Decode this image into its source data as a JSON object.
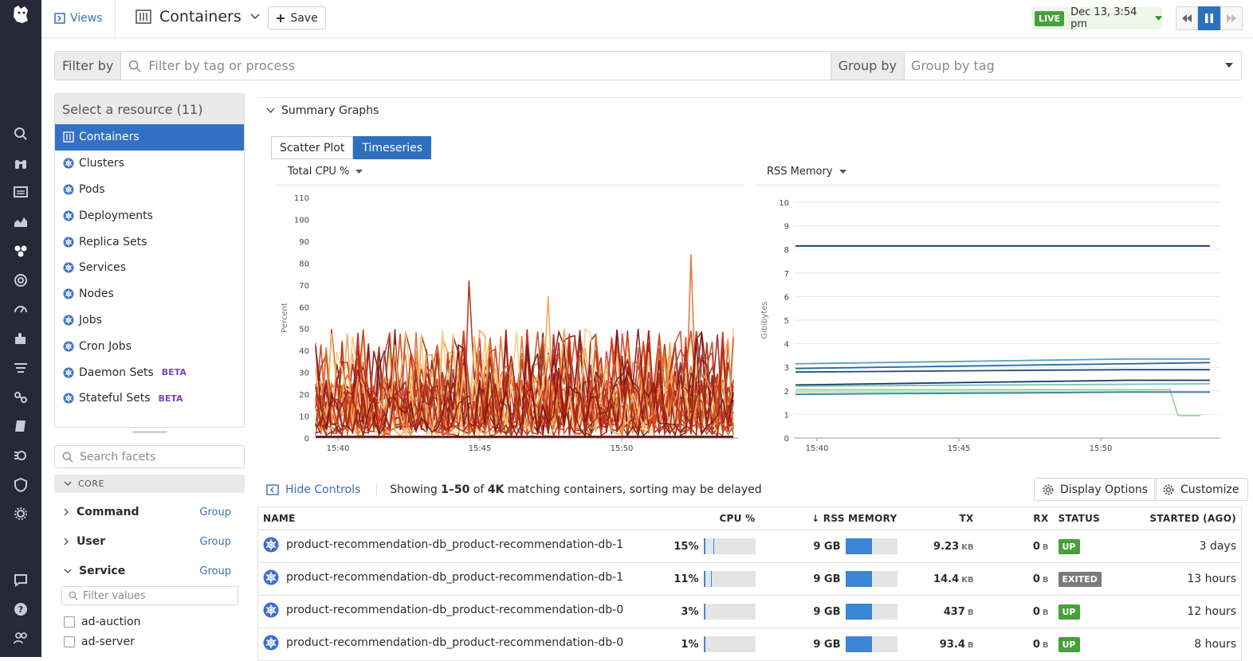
{
  "topbar": {
    "views_label": "Views",
    "page_title": "Containers",
    "save_label": "Save",
    "live_badge": "LIVE",
    "timestamp": "Dec 13, 3:54 pm"
  },
  "filterbar": {
    "filter_label": "Filter by",
    "filter_placeholder": "Filter by tag or process",
    "group_label": "Group by",
    "group_placeholder": "Group by tag"
  },
  "resources": {
    "header": "Select a resource (11)",
    "items": [
      {
        "label": "Containers",
        "beta": ""
      },
      {
        "label": "Clusters",
        "beta": ""
      },
      {
        "label": "Pods",
        "beta": ""
      },
      {
        "label": "Deployments",
        "beta": ""
      },
      {
        "label": "Replica Sets",
        "beta": ""
      },
      {
        "label": "Services",
        "beta": ""
      },
      {
        "label": "Nodes",
        "beta": ""
      },
      {
        "label": "Jobs",
        "beta": ""
      },
      {
        "label": "Cron Jobs",
        "beta": ""
      },
      {
        "label": "Daemon Sets",
        "beta": "BETA"
      },
      {
        "label": "Stateful Sets",
        "beta": "BETA"
      }
    ]
  },
  "facets": {
    "search_placeholder": "Search facets",
    "core_label": "CORE",
    "group_link": "Group",
    "items": [
      "Command",
      "User",
      "Service"
    ],
    "filter_values_placeholder": "Filter values",
    "values": [
      "ad-auction",
      "ad-server"
    ]
  },
  "summary": {
    "title": "Summary Graphs",
    "tabs": [
      "Scatter Plot",
      "Timeseries"
    ],
    "cpu_select": "Total CPU %",
    "mem_select": "RSS Memory"
  },
  "chart_data": [
    {
      "type": "line",
      "ylabel": "Percent",
      "ylim": [
        0,
        110
      ],
      "yticks": [
        "0",
        "10",
        "20",
        "30",
        "40",
        "50",
        "60",
        "70",
        "80",
        "90",
        "100",
        "110"
      ],
      "xticks": [
        "15:40",
        "15:45",
        "15:50"
      ],
      "series_colors": [
        "#7a1212",
        "#a52a14",
        "#c8431c",
        "#e06a2c",
        "#f0a04a",
        "#f7c978",
        "#d33a1f",
        "#9e1b1b"
      ],
      "peak": 84,
      "typical_max": 45
    },
    {
      "type": "line",
      "ylabel": "Gibibytes",
      "ylim": [
        0,
        10
      ],
      "yticks": [
        "0",
        "1",
        "2",
        "3",
        "4",
        "5",
        "6",
        "7",
        "8",
        "9",
        "10"
      ],
      "xticks": [
        "15:40",
        "15:45",
        "15:50"
      ],
      "series": [
        {
          "color": "#12345e",
          "values": [
            8.15,
            8.15,
            8.15,
            8.15,
            8.15,
            8.15
          ]
        },
        {
          "color": "#5aa0c4",
          "values": [
            3.15,
            3.2,
            3.25,
            3.3,
            3.35,
            3.35
          ]
        },
        {
          "color": "#2a6a9e",
          "values": [
            2.95,
            3.0,
            3.05,
            3.1,
            3.15,
            3.2
          ]
        },
        {
          "color": "#1d4a80",
          "values": [
            2.8,
            2.82,
            2.85,
            2.88,
            2.9,
            2.9
          ]
        },
        {
          "color": "#0f3a6a",
          "values": [
            2.25,
            2.3,
            2.35,
            2.4,
            2.45,
            2.45
          ]
        },
        {
          "color": "#7fc0b0",
          "values": [
            2.2,
            2.22,
            2.24,
            2.26,
            2.28,
            2.3
          ]
        },
        {
          "color": "#9ad39a",
          "values": [
            2.05,
            2.05,
            2.05,
            2.05,
            2.05,
            0.95
          ]
        },
        {
          "color": "#b5e0b5",
          "values": [
            1.95,
            1.95,
            1.95,
            1.95,
            1.95,
            1.95
          ]
        },
        {
          "color": "#3a7fb0",
          "values": [
            1.85,
            1.88,
            1.9,
            1.92,
            1.95,
            1.95
          ]
        }
      ]
    }
  ],
  "controls": {
    "hide_label": "Hide Controls",
    "showing_pre": "Showing ",
    "showing_range": "1–50",
    "showing_mid": " of ",
    "showing_total": "4K",
    "showing_post": " matching containers, sorting may be delayed",
    "display_options": "Display Options",
    "customize": "Customize"
  },
  "table": {
    "headers": [
      "NAME",
      "CPU %",
      "RSS MEMORY",
      "TX",
      "RX",
      "STATUS",
      "STARTED (AGO)"
    ],
    "rows": [
      {
        "name": "product-recommendation-db_product-recommendation-db-1",
        "cpu": "15%",
        "cpu_frac": 0.15,
        "mem": "9 GB",
        "mem_frac": 0.52,
        "tx": "9.23",
        "tx_unit": "KB",
        "rx": "0",
        "rx_unit": "B",
        "status": "UP",
        "status_color": "#47a03a",
        "started": "3 days"
      },
      {
        "name": "product-recommendation-db_product-recommendation-db-1",
        "cpu": "11%",
        "cpu_frac": 0.11,
        "mem": "9 GB",
        "mem_frac": 0.52,
        "tx": "14.4",
        "tx_unit": "KB",
        "rx": "0",
        "rx_unit": "B",
        "status": "EXITED",
        "status_color": "#7a7a7a",
        "started": "13 hours"
      },
      {
        "name": "product-recommendation-db_product-recommendation-db-0",
        "cpu": "3%",
        "cpu_frac": 0.03,
        "mem": "9 GB",
        "mem_frac": 0.52,
        "tx": "437",
        "tx_unit": "B",
        "rx": "0",
        "rx_unit": "B",
        "status": "UP",
        "status_color": "#47a03a",
        "started": "12 hours"
      },
      {
        "name": "product-recommendation-db_product-recommendation-db-0",
        "cpu": "1%",
        "cpu_frac": 0.01,
        "mem": "9 GB",
        "mem_frac": 0.52,
        "tx": "93.4",
        "tx_unit": "B",
        "rx": "0",
        "rx_unit": "B",
        "status": "UP",
        "status_color": "#47a03a",
        "started": "8 hours"
      }
    ]
  },
  "colors": {
    "accent": "#2e6fbe",
    "nav_bg": "#27283a",
    "bar_blue": "#3a86d4",
    "status_up": "#47a03a"
  }
}
